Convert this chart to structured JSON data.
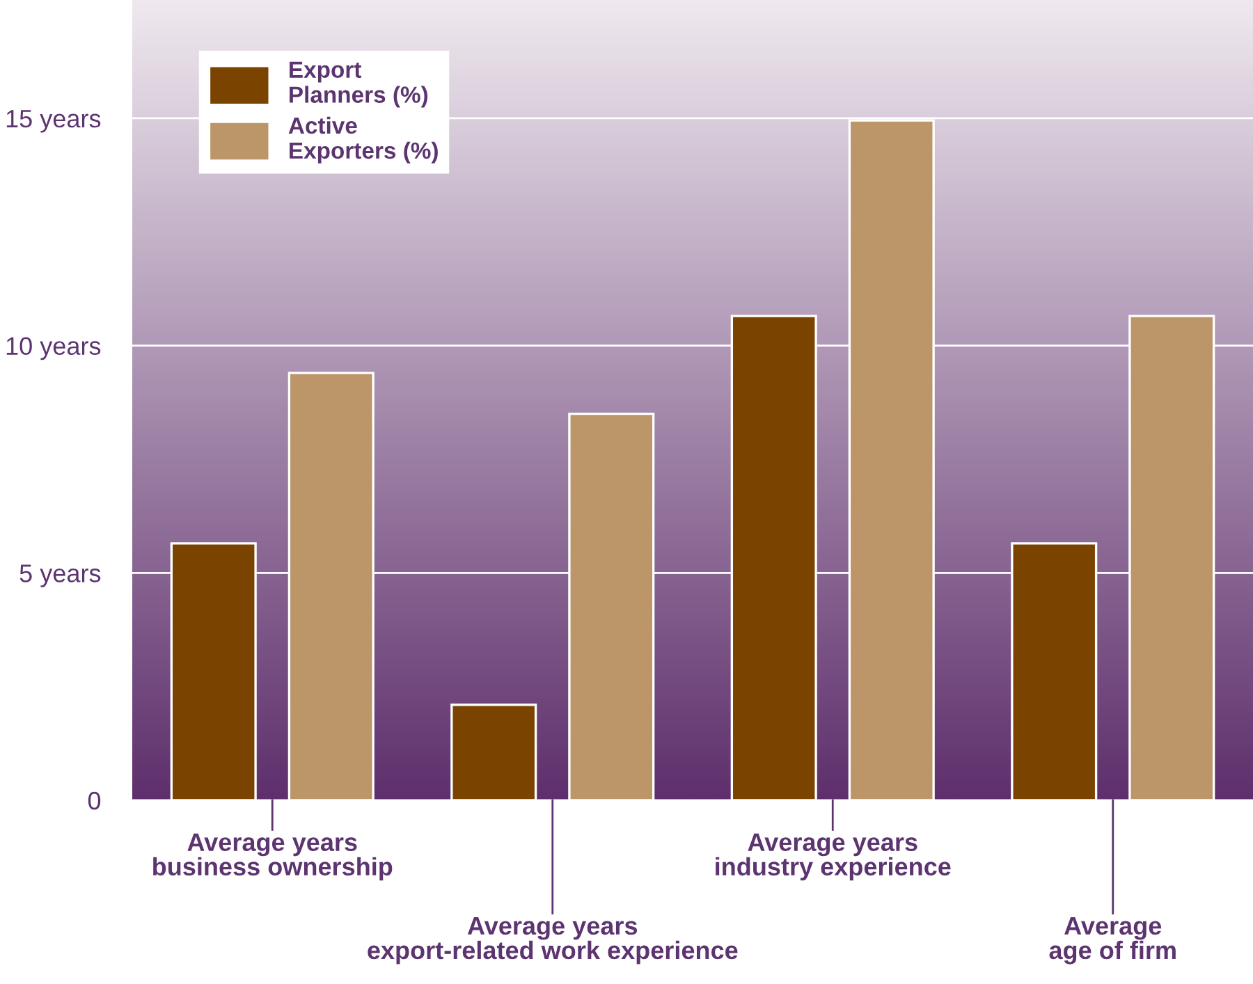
{
  "chart_data": {
    "type": "bar",
    "categories": [
      "Average years\nbusiness ownership",
      "Average years\nexport-related work experience",
      "Average years\nindustry experience",
      "Average\nage of firm"
    ],
    "series": [
      {
        "name": "Export\nPlanners (%)",
        "color": "#7a4400",
        "values": [
          5.65,
          2.1,
          10.65,
          5.65
        ]
      },
      {
        "name": "Active\nExporters (%)",
        "color": "#bc9668",
        "values": [
          9.4,
          8.5,
          14.95,
          10.65
        ]
      }
    ],
    "ylim": [
      0,
      17.6
    ],
    "yticks": [
      0,
      {
        "value": 5,
        "label": "5 years"
      },
      {
        "value": 10,
        "label": "10 years"
      },
      {
        "value": 15,
        "label": "15 years"
      }
    ],
    "grid": "y",
    "legend": "top left"
  }
}
